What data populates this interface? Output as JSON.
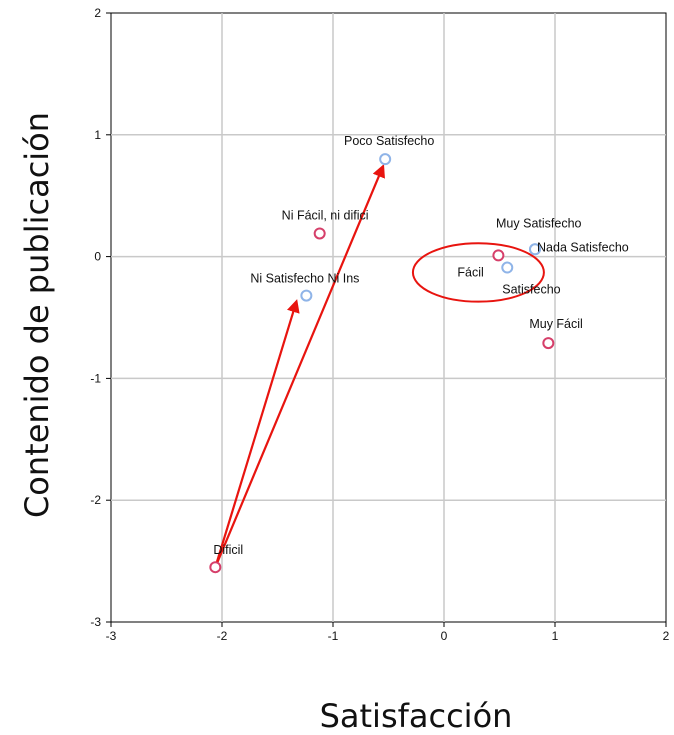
{
  "chart_data": {
    "type": "scatter",
    "title": "",
    "xlabel": "Satisfacción",
    "ylabel": "Contenido de publicación",
    "xlim": [
      -3,
      2
    ],
    "ylim": [
      -3,
      2
    ],
    "x_ticks": [
      "-3",
      "-2",
      "-1",
      "0",
      "1",
      "2"
    ],
    "y_ticks": [
      "-3",
      "-2",
      "-1",
      "0",
      "1",
      "2"
    ],
    "grid": true,
    "series": [
      {
        "color": "#8fb4e8",
        "points": [
          {
            "label": "Poco Satisfecho",
            "x": -0.53,
            "y": 0.8
          },
          {
            "label": "Muy Satisfecho",
            "x": 0.82,
            "y": 0.06
          },
          {
            "label": "Nada Satisfecho",
            "x": 0.82,
            "y": 0.06
          },
          {
            "label": "Satisfecho",
            "x": 0.57,
            "y": -0.09
          },
          {
            "label": "Ni Satisfecho Ni Ins",
            "x": -1.24,
            "y": -0.32
          }
        ]
      },
      {
        "color": "#d63f6a",
        "points": [
          {
            "label": "Ni Fácil, ni difici",
            "x": -1.12,
            "y": 0.19
          },
          {
            "label": "Fácil",
            "x": 0.49,
            "y": 0.01
          },
          {
            "label": "Muy Fácil",
            "x": 0.94,
            "y": -0.71
          },
          {
            "label": "Dificil",
            "x": -2.06,
            "y": -2.55
          }
        ]
      }
    ],
    "annotations": {
      "arrows": [
        {
          "from": [
            -2.06,
            -2.55
          ],
          "to": [
            -0.55,
            0.74
          ]
        },
        {
          "from": [
            -2.06,
            -2.55
          ],
          "to": [
            -1.33,
            -0.37
          ]
        }
      ],
      "ellipse": {
        "cx": 0.31,
        "cy": -0.13,
        "rx": 0.59,
        "ry": 0.24
      }
    }
  }
}
